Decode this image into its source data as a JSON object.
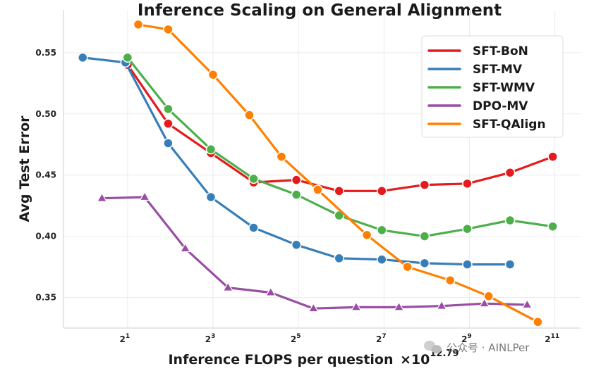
{
  "chart_data": {
    "type": "line",
    "title": "Inference Scaling on General Alignment",
    "xlabel": "Inference FLOPS per question",
    "x_multiplier": "×10",
    "x_multiplier_exponent": "12.79",
    "ylabel": "Avg Test Error",
    "x_scale": "log2",
    "xlim_log2": [
      -0.5,
      11.6
    ],
    "ylim": [
      0.325,
      0.585
    ],
    "x_ticks": [
      {
        "log2": 1,
        "base": "2",
        "exp": "1"
      },
      {
        "log2": 3,
        "base": "2",
        "exp": "3"
      },
      {
        "log2": 5,
        "base": "2",
        "exp": "5"
      },
      {
        "log2": 7,
        "base": "2",
        "exp": "7"
      },
      {
        "log2": 9,
        "base": "2",
        "exp": "9"
      },
      {
        "log2": 11,
        "base": "2",
        "exp": "11"
      }
    ],
    "y_ticks": [
      {
        "value": 0.35,
        "label": "0.35"
      },
      {
        "value": 0.4,
        "label": "0.40"
      },
      {
        "value": 0.45,
        "label": "0.45"
      },
      {
        "value": 0.5,
        "label": "0.50"
      },
      {
        "value": 0.55,
        "label": "0.55"
      }
    ],
    "grid": true,
    "legend_position": "top-right",
    "series": [
      {
        "name": "SFT-BoN",
        "color": "#e41a1c",
        "marker": "circle",
        "x_log2": [
          1.0,
          1.95,
          2.95,
          3.95,
          4.95,
          5.95,
          6.95,
          7.95,
          8.95,
          9.95,
          10.95
        ],
        "values": [
          0.54,
          0.492,
          0.468,
          0.444,
          0.446,
          0.437,
          0.437,
          0.442,
          0.443,
          0.452,
          0.465
        ]
      },
      {
        "name": "SFT-MV",
        "color": "#377eb8",
        "marker": "circle",
        "x_log2": [
          -0.05,
          0.95,
          1.95,
          2.95,
          3.95,
          4.95,
          5.95,
          6.95,
          7.95,
          8.95,
          9.95
        ],
        "values": [
          0.546,
          0.542,
          0.476,
          0.432,
          0.407,
          0.393,
          0.382,
          0.381,
          0.378,
          0.377,
          0.377
        ]
      },
      {
        "name": "SFT-WMV",
        "color": "#4daf4a",
        "marker": "circle",
        "x_log2": [
          1.0,
          1.95,
          2.95,
          3.95,
          4.95,
          5.95,
          6.95,
          7.95,
          8.95,
          9.95,
          10.95
        ],
        "values": [
          0.546,
          0.504,
          0.471,
          0.447,
          0.434,
          0.417,
          0.405,
          0.4,
          0.406,
          0.413,
          0.408
        ]
      },
      {
        "name": "DPO-MV",
        "color": "#984ea3",
        "marker": "triangle",
        "x_log2": [
          0.4,
          1.4,
          2.35,
          3.35,
          4.35,
          5.35,
          6.35,
          7.35,
          8.35,
          9.35,
          10.35
        ],
        "values": [
          0.431,
          0.432,
          0.39,
          0.358,
          0.354,
          0.341,
          0.342,
          0.342,
          0.343,
          0.345,
          0.344
        ]
      },
      {
        "name": "SFT-QAlign",
        "color": "#ff7f00",
        "marker": "circle",
        "x_log2": [
          1.25,
          1.95,
          3.0,
          3.85,
          4.6,
          5.45,
          6.6,
          7.55,
          8.55,
          9.45,
          10.6
        ],
        "values": [
          0.573,
          0.569,
          0.532,
          0.499,
          0.465,
          0.438,
          0.401,
          0.375,
          0.364,
          0.351,
          0.33
        ]
      }
    ]
  },
  "watermark": {
    "icon": "wechat-icon",
    "text": "公众号 · AINLPer"
  }
}
